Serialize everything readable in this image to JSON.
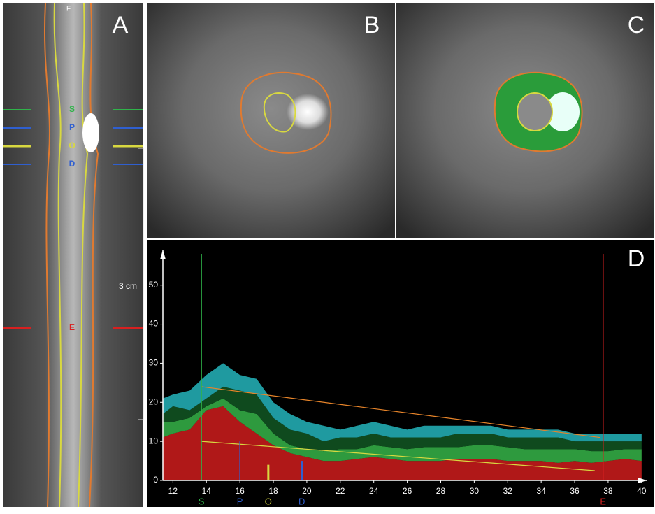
{
  "panels": {
    "A": {
      "label": "A",
      "top_label": "F",
      "scale": "3 cm",
      "markers": [
        {
          "label": "S",
          "color": "#2fb34a"
        },
        {
          "label": "P",
          "color": "#2f5fd0"
        },
        {
          "label": "O",
          "color": "#d8d840"
        },
        {
          "label": "D",
          "color": "#2f5fd0"
        },
        {
          "label": "E",
          "color": "#d82020"
        }
      ]
    },
    "B": {
      "label": "B"
    },
    "C": {
      "label": "C"
    }
  },
  "chart_data": {
    "type": "stacked-area",
    "label": "D",
    "x": [
      11.4,
      12,
      13,
      14,
      15,
      16,
      17,
      18,
      19,
      20,
      21,
      22,
      23,
      24,
      25,
      26,
      27,
      28,
      29,
      30,
      31,
      32,
      33,
      34,
      35,
      36,
      37,
      38,
      39,
      40
    ],
    "xlim": [
      11.4,
      40.3
    ],
    "ylim": [
      0,
      58
    ],
    "xticks": [
      12,
      14,
      16,
      18,
      20,
      22,
      24,
      26,
      28,
      30,
      32,
      34,
      36,
      38,
      40
    ],
    "yticks": [
      0,
      10,
      20,
      30,
      40,
      50
    ],
    "series": [
      {
        "color": "#b01818",
        "values": [
          11,
          12,
          13,
          18,
          19,
          15,
          12,
          9,
          7,
          6,
          5,
          5,
          5.5,
          6,
          5.5,
          5,
          5,
          5,
          5.5,
          5.5,
          5.5,
          5,
          5,
          5,
          4.5,
          5,
          4.5,
          5,
          5.5,
          5
        ]
      },
      {
        "color": "#2e9a3e",
        "values": [
          4,
          3,
          3,
          1,
          2,
          3,
          5,
          3,
          2,
          2,
          2.5,
          3,
          2.5,
          3,
          3,
          3,
          3.5,
          3.5,
          3,
          3.5,
          3.5,
          3.5,
          3,
          3,
          3.5,
          3,
          3,
          2.5,
          2.5,
          3
        ]
      },
      {
        "color": "#0f4a1e",
        "values": [
          2,
          4,
          2,
          2,
          3,
          5,
          5,
          4,
          4,
          4,
          2.5,
          3,
          3,
          3,
          2.5,
          3,
          2.5,
          2.5,
          3.5,
          3,
          3,
          2.5,
          3,
          3,
          3,
          2,
          2.5,
          2.5,
          2,
          2
        ]
      },
      {
        "color": "#1f9aa0",
        "values": [
          4,
          3,
          5,
          6,
          6,
          4,
          4,
          4,
          4,
          3,
          4,
          2,
          3,
          3,
          3,
          2,
          3,
          3,
          2,
          2,
          2,
          2,
          2,
          2,
          2,
          2,
          2,
          2,
          2,
          2
        ]
      }
    ],
    "trend_lines": [
      {
        "color": "#e8852a",
        "x": [
          13.7,
          37.5
        ],
        "y": [
          24,
          11
        ]
      },
      {
        "color": "#d8d840",
        "x": [
          13.7,
          37.2
        ],
        "y": [
          10,
          2.5
        ]
      }
    ],
    "markers": [
      {
        "label": "S",
        "color": "#2fb34a",
        "x": 13.7,
        "y_end": 58
      },
      {
        "label": "P",
        "color": "#2f5fd0",
        "x": 16,
        "y_end": 10
      },
      {
        "label": "O",
        "color": "#d8d840",
        "x": 17.7,
        "y_end": 4
      },
      {
        "label": "D",
        "color": "#2f5fd0",
        "x": 19.7,
        "y_end": 5
      },
      {
        "label": "E",
        "color": "#d82020",
        "x": 37.7,
        "y_end": 58
      }
    ]
  }
}
